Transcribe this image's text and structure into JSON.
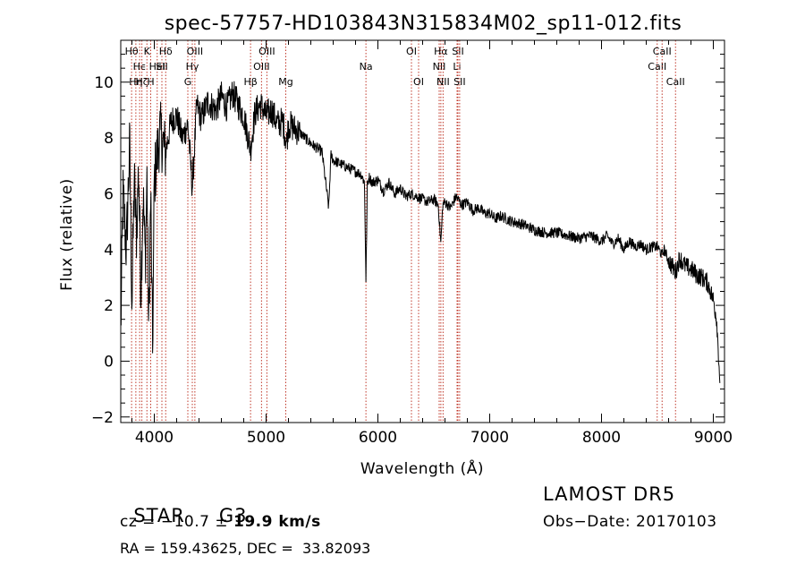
{
  "chart_data": {
    "type": "line",
    "title": "spec-57757-HD103843N315834M02_sp11-012.fits",
    "xlabel": "Wavelength (Å)",
    "ylabel": "Flux (relative)",
    "xlim": [
      3700,
      9100
    ],
    "ylim": [
      -2.2,
      11.5
    ],
    "xticks": [
      4000,
      5000,
      6000,
      7000,
      8000,
      9000
    ],
    "yticks": [
      -2,
      0,
      2,
      4,
      6,
      8,
      10
    ],
    "grid": false,
    "legend": "none",
    "line_color": "#000000",
    "marker_color": "#c0392b",
    "series": [
      {
        "x": [
          3700,
          3720,
          3750,
          3780,
          3800,
          3820,
          3840,
          3860,
          3880,
          3900,
          3920,
          3935,
          3950,
          3968,
          3985,
          4000,
          4050,
          4101,
          4150,
          4200,
          4250,
          4300,
          4340,
          4380,
          4420,
          4480,
          4550,
          4600,
          4650,
          4700,
          4750,
          4800,
          4861,
          4900,
          4950,
          5000,
          5050,
          5100,
          5150,
          5183,
          5200,
          5300,
          5400,
          5500,
          5560,
          5580,
          5600,
          5700,
          5800,
          5850,
          5880,
          5893,
          5905,
          5920,
          5950,
          6000,
          6050,
          6100,
          6150,
          6200,
          6250,
          6300,
          6350,
          6400,
          6450,
          6500,
          6540,
          6563,
          6580,
          6600,
          6650,
          6700,
          6750,
          6800,
          6850,
          6900,
          6950,
          7000,
          7050,
          7100,
          7200,
          7300,
          7400,
          7500,
          7600,
          7700,
          7800,
          7900,
          8000,
          8050,
          8100,
          8150,
          8200,
          8250,
          8300,
          8350,
          8400,
          8450,
          8500,
          8542,
          8560,
          8600,
          8662,
          8700,
          8750,
          8800,
          8850,
          8900,
          8950,
          9000,
          9030,
          9060
        ],
        "y": [
          1.0,
          6.0,
          4.0,
          7.8,
          2.0,
          6.5,
          4.5,
          7.0,
          2.5,
          6.0,
          3.5,
          6.8,
          1.0,
          6.0,
          0.3,
          6.5,
          8.2,
          7.5,
          8.6,
          8.8,
          8.0,
          8.5,
          6.2,
          9.2,
          8.7,
          9.3,
          9.0,
          9.5,
          9.1,
          9.6,
          9.2,
          8.8,
          7.6,
          8.9,
          9.2,
          8.8,
          9.0,
          8.5,
          8.6,
          7.8,
          8.5,
          8.2,
          7.8,
          7.5,
          5.5,
          7.4,
          7.2,
          7.0,
          6.8,
          6.7,
          6.4,
          2.8,
          6.3,
          6.6,
          6.4,
          6.5,
          6.1,
          6.4,
          6.0,
          6.2,
          5.9,
          6.0,
          5.9,
          5.8,
          5.7,
          5.8,
          5.6,
          4.2,
          5.6,
          5.7,
          5.5,
          5.9,
          5.6,
          5.7,
          5.4,
          5.5,
          5.3,
          5.3,
          5.1,
          5.2,
          5.0,
          4.9,
          4.7,
          4.6,
          4.6,
          4.5,
          4.4,
          4.5,
          4.3,
          4.5,
          4.2,
          4.4,
          4.0,
          4.3,
          4.1,
          4.2,
          4.0,
          4.1,
          4.1,
          3.8,
          4.0,
          3.6,
          3.2,
          3.7,
          3.4,
          3.3,
          3.1,
          3.0,
          2.8,
          2.2,
          1.5,
          -0.8
        ]
      }
    ],
    "lines": [
      {
        "x": 3797,
        "label": "Hθ",
        "row": 0
      },
      {
        "x": 3835,
        "label": "Hη",
        "row": 2
      },
      {
        "x": 3869,
        "label": "Hϵ",
        "row": 1
      },
      {
        "x": 3889,
        "label": "Hζ",
        "row": 2
      },
      {
        "x": 3934,
        "label": "K",
        "row": 0
      },
      {
        "x": 3968,
        "label": "H",
        "row": 2
      },
      {
        "x": 4026,
        "label": "HeI",
        "row": 1
      },
      {
        "x": 4068,
        "label": "SII",
        "row": 1
      },
      {
        "x": 4102,
        "label": "Hδ",
        "row": 0
      },
      {
        "x": 4300,
        "label": "G",
        "row": 2
      },
      {
        "x": 4340,
        "label": "Hγ",
        "row": 1
      },
      {
        "x": 4363,
        "label": "OIII",
        "row": 0
      },
      {
        "x": 4861,
        "label": "Hβ",
        "row": 2
      },
      {
        "x": 4959,
        "label": "OIII",
        "row": 1
      },
      {
        "x": 5007,
        "label": "OIII",
        "row": 0
      },
      {
        "x": 5176,
        "label": "Mg",
        "row": 2
      },
      {
        "x": 5893,
        "label": "Na",
        "row": 1
      },
      {
        "x": 6300,
        "label": "OI",
        "row": 0
      },
      {
        "x": 6364,
        "label": "OI",
        "row": 2
      },
      {
        "x": 6548,
        "label": "NII",
        "row": 1
      },
      {
        "x": 6563,
        "label": "Hα",
        "row": 0
      },
      {
        "x": 6583,
        "label": "NII",
        "row": 2
      },
      {
        "x": 6708,
        "label": "Li",
        "row": 1
      },
      {
        "x": 6716,
        "label": "SII",
        "row": 0
      },
      {
        "x": 6731,
        "label": "SII",
        "row": 2
      },
      {
        "x": 8498,
        "label": "CaII",
        "row": 1
      },
      {
        "x": 8542,
        "label": "CaII",
        "row": 0
      },
      {
        "x": 8662,
        "label": "CaII",
        "row": 2
      }
    ]
  },
  "info": {
    "class_label": "STAR",
    "subclass": "G3",
    "survey": "LAMOST DR5",
    "cz_label": "cz = ",
    "cz_value": "−10.7",
    "cz_pm": " ± ",
    "cz_error": "19.9",
    "cz_unit": " km/s",
    "obs_date": "Obs−Date: 20170103",
    "coords": "RA = 159.43625, DEC =  33.82093"
  }
}
